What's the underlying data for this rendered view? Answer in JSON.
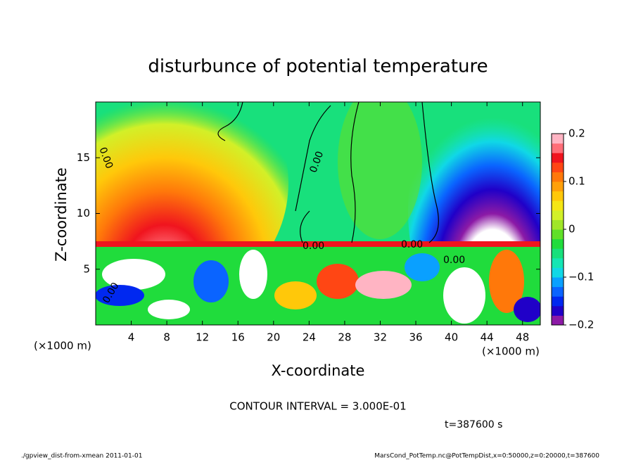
{
  "chart_data": {
    "type": "contour",
    "title": "disturbunce of potential temperature",
    "xlabel": "X-coordinate",
    "ylabel": "Z-coordinate",
    "x_unit_left": "(×1000 m)",
    "x_unit_right": "(×1000 m)",
    "xlim": [
      0,
      50
    ],
    "xticks": [
      4,
      8,
      12,
      16,
      20,
      24,
      28,
      32,
      36,
      40,
      44,
      48
    ],
    "ylim": [
      0,
      20
    ],
    "yticks": [
      5,
      10,
      15
    ],
    "colorbar": {
      "lim": [
        -0.2,
        0.2
      ],
      "ticks": [
        0.2,
        0.1,
        0,
        {
          "value": -0.1,
          "label": "−0.1"
        },
        {
          "value": -0.2,
          "label": "−0.2"
        }
      ],
      "colors": [
        "#8c1aa6",
        "#2000c8",
        "#0028f0",
        "#0a64ff",
        "#0aa0ff",
        "#10d8e6",
        "#14e6b4",
        "#18e07c",
        "#20dc3c",
        "#60e028",
        "#a0e628",
        "#d2f028",
        "#f5e614",
        "#ffc80a",
        "#ffa00a",
        "#ff780a",
        "#ff4614",
        "#f0141e",
        "#ff6e78",
        "#ffb4c3"
      ]
    },
    "contour_labels": [
      "0.00",
      "0.00",
      "0.00",
      "0.00",
      "0.00",
      "0.00"
    ],
    "contour_interval": "CONTOUR INTERVAL = 3.000E-01",
    "time_label": "t=387600 s",
    "footer_left": "./gpview_dist-from-xmean  2011-01-01",
    "footer_right": "MarsCond_PotTemp.nc@PotTempDist,x=0:50000,z=0:20000,t=387600"
  }
}
